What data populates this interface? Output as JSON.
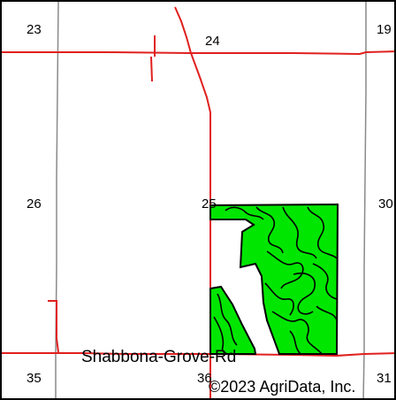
{
  "map": {
    "colors": {
      "road": "#e0201e",
      "section_line": "#8a8a8a",
      "field_fill": "#00e600",
      "field_outline": "#000000",
      "background": "#ffffff"
    },
    "sections": {
      "s23": "23",
      "s24": "24",
      "s19": "19",
      "s26": "26",
      "s25": "25",
      "s30": "30",
      "s35": "35",
      "s36": "36",
      "s31": "31"
    },
    "road_name": "Shabbona-Grove-Rd",
    "copyright": "©2023 AgriData, Inc."
  }
}
